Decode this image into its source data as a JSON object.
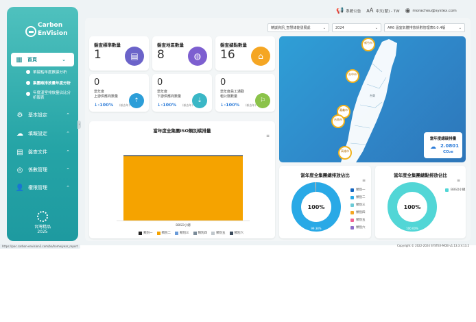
{
  "brand": {
    "line1": "Carbon",
    "line2": "EnVision"
  },
  "sidebar": {
    "home_label": "首頁",
    "sub_items": [
      "單據點年度數據分析",
      "集團碳排放量年度分析",
      "年度溫室排放量佔比分析報表"
    ],
    "items": [
      "基本設定",
      "填報設定",
      "盤查文件",
      "係數管理",
      "權限管理"
    ],
    "award": {
      "line1": "台灣精品",
      "line2": "2025"
    }
  },
  "topbar": {
    "announce": "系統公告",
    "language": "中文(繁) - TW",
    "user": "moracheu@systex.com"
  },
  "filters": {
    "company": "精誠資訊_智慧綠能發展處",
    "year": "2024",
    "standard": "AR6 溫室氣體排放係數管理表6.0.4版"
  },
  "kpi": [
    {
      "label": "盤查標準數量",
      "value": "1",
      "color": "#6b63c9",
      "icon": "document-icon"
    },
    {
      "label": "盤查地區數量",
      "value": "8",
      "color": "#7d5fd0",
      "icon": "globe-icon"
    },
    {
      "label": "盤查據點數量",
      "value": "16",
      "color": "#f5a623",
      "icon": "location-icon"
    }
  ],
  "kpi2": [
    {
      "value": "0",
      "line1": "當年度",
      "line2": "上游供應商數量",
      "pct": "↓-100%",
      "note": "(較去年)",
      "color": "#2c9ed8",
      "icon": "upstream-icon"
    },
    {
      "value": "0",
      "line1": "當年度",
      "line2": "下游供應商數量",
      "pct": "↓-100%",
      "note": "(較去年)",
      "color": "#3ab7c6",
      "icon": "downstream-icon"
    },
    {
      "value": "0",
      "line1": "當年度員工通勤",
      "line2": "租公務數量",
      "pct": "↓-100%",
      "note": "(較去年)",
      "color": "#8bc34a",
      "icon": "commute-icon"
    }
  ],
  "map": {
    "pins": [
      "新竹市",
      "台中市",
      "嘉義市",
      "台南市",
      "高雄市"
    ],
    "label_extra": "台東",
    "emission_title": "當年度總碳排量",
    "emission_value": "2.0801",
    "emission_unit": "CO₂e"
  },
  "bar_chart_title": "當年度全集團ISO類別碳排量",
  "donut1_title": "當年度全集團總排放佔比",
  "donut2_title": "當年度全集團總點排放佔比",
  "chart_data": [
    {
      "type": "bar",
      "title": "當年度全集團ISO類別碳排量",
      "categories": [
        "BBSD小總"
      ],
      "series": [
        {
          "name": "類別一",
          "values": [
            0
          ],
          "color": "#222222"
        },
        {
          "name": "類別二",
          "values": [
            2.06
          ],
          "color": "#f5a300"
        },
        {
          "name": "類別三",
          "values": [
            0
          ],
          "color": "#6a9bd8"
        },
        {
          "name": "類別四",
          "values": [
            0
          ],
          "color": "#7a8b99"
        },
        {
          "name": "類別五",
          "values": [
            0
          ],
          "color": "#c0c7cc"
        },
        {
          "name": "類別六",
          "values": [
            0.02
          ],
          "color": "#3b4b5c"
        }
      ]
    },
    {
      "type": "pie",
      "title": "當年度全集團總排放佔比",
      "center_label": "100%",
      "labels": [
        "類別一",
        "類別二",
        "類別三",
        "類別四",
        "類別五",
        "類別六"
      ],
      "values": [
        0.01,
        99.38,
        0.2,
        0.2,
        0.1,
        0.11
      ],
      "slice_label": "99.38%",
      "colors": [
        "#1565c0",
        "#29a9e6",
        "#6bcad6",
        "#f5a623",
        "#f06292",
        "#8e6bc8"
      ]
    },
    {
      "type": "pie",
      "title": "當年度全集團總點排放佔比",
      "center_label": "100%",
      "labels": [
        "BBSD小總"
      ],
      "values": [
        100
      ],
      "slice_label": "100.00%",
      "colors": [
        "#52d6d6"
      ]
    }
  ],
  "statusbar": {
    "url": "https://poc.carbon-envision2.com/bo/home/year_report",
    "copyright": "Copyright © 2022-2024 SYSTEX-MOB v1.13.3.V.13.2"
  }
}
